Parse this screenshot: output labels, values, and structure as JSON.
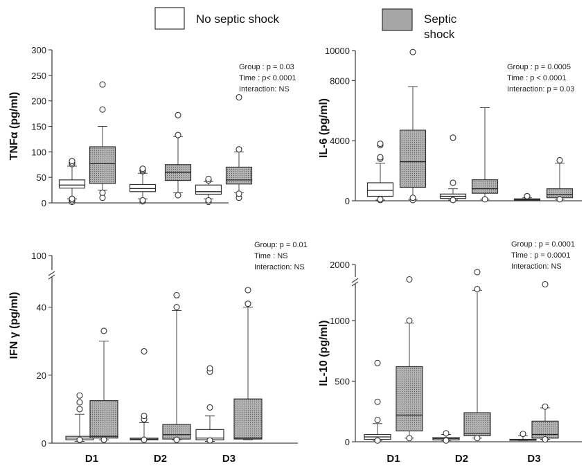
{
  "legend": {
    "items": [
      {
        "label": "No septic shock",
        "fill": "#ffffff"
      },
      {
        "label": "Septic",
        "label2": "shock",
        "fill": "#a6a6a6"
      }
    ]
  },
  "colors": {
    "no_shock": "#ffffff",
    "shock": "#a6a6a6",
    "stroke": "#333333"
  },
  "chart_data": [
    {
      "type": "box",
      "ylabel": "TNFα (pg/ml)",
      "categories": [
        "D1",
        "D2",
        "D3"
      ],
      "ylim": [
        0,
        300
      ],
      "yticks": [
        0,
        50,
        100,
        150,
        200,
        250,
        300
      ],
      "stats": [
        "Group : p = 0.03",
        "Time : p< 0.0001",
        "Interaction: NS"
      ],
      "series": [
        {
          "name": "No septic shock",
          "boxes": [
            {
              "min": 8,
              "q1": 29,
              "median": 35,
              "q3": 45,
              "max": 72,
              "outliers": [
                2,
                5,
                8,
                76,
                79,
                82
              ]
            },
            {
              "min": 8,
              "q1": 22,
              "median": 28,
              "q3": 36,
              "max": 58,
              "outliers": [
                3,
                5,
                62,
                64,
                67
              ]
            },
            {
              "min": 8,
              "q1": 17,
              "median": 22,
              "q3": 35,
              "max": 42,
              "outliers": [
                2,
                5,
                44,
                47
              ]
            }
          ]
        },
        {
          "name": "Septic shock",
          "boxes": [
            {
              "min": 25,
              "q1": 38,
              "median": 77,
              "q3": 110,
              "max": 150,
              "outliers": [
                10,
                20,
                183,
                232
              ]
            },
            {
              "min": 20,
              "q1": 44,
              "median": 60,
              "q3": 75,
              "max": 130,
              "outliers": [
                15,
                133,
                172
              ]
            },
            {
              "min": 20,
              "q1": 37,
              "median": 45,
              "q3": 70,
              "max": 100,
              "outliers": [
                10,
                18,
                105,
                207
              ]
            }
          ]
        }
      ]
    },
    {
      "type": "box",
      "ylabel": "IL-6 (pg/ml)",
      "categories": [
        "D1",
        "D2",
        "D3"
      ],
      "ylim": [
        0,
        10000
      ],
      "yticks": [
        0,
        4000,
        8000,
        10000
      ],
      "stats": [
        "Group : p = 0.0005",
        "Time : p < 0.0001",
        "Interaction: p = 0.03"
      ],
      "series": [
        {
          "name": "No septic shock",
          "boxes": [
            {
              "min": 50,
              "q1": 300,
              "median": 700,
              "q3": 1200,
              "max": 2500,
              "outliers": [
                50,
                100,
                2800,
                2900,
                3700,
                3800
              ]
            },
            {
              "min": 50,
              "q1": 150,
              "median": 300,
              "q3": 450,
              "max": 800,
              "outliers": [
                50,
                1200,
                4200
              ]
            },
            {
              "min": 20,
              "q1": 50,
              "median": 80,
              "q3": 130,
              "max": 200,
              "outliers": [
                280,
                310
              ]
            }
          ]
        },
        {
          "name": "Septic shock",
          "boxes": [
            {
              "min": 100,
              "q1": 900,
              "median": 2600,
              "q3": 4700,
              "max": 7600,
              "outliers": [
                50,
                200,
                9900
              ]
            },
            {
              "min": 100,
              "q1": 500,
              "median": 800,
              "q3": 1400,
              "max": 6200,
              "outliers": [
                100
              ]
            },
            {
              "min": 100,
              "q1": 200,
              "median": 400,
              "q3": 800,
              "max": 2500,
              "outliers": [
                100,
                2700
              ]
            }
          ]
        }
      ]
    },
    {
      "type": "box",
      "ylabel": "IFN γ (pg/ml)",
      "categories": [
        "D1",
        "D2",
        "D3"
      ],
      "ylim": [
        0,
        45
      ],
      "yticks": [
        0,
        20,
        40
      ],
      "break_label": "100",
      "stats": [
        "Group: p = 0.01",
        "Time : NS",
        "Interaction: NS"
      ],
      "series": [
        {
          "name": "No septic shock",
          "boxes": [
            {
              "min": 0.5,
              "q1": 1.0,
              "median": 1.5,
              "q3": 2.0,
              "max": 8.5,
              "outliers": [
                1,
                10,
                12,
                14
              ]
            },
            {
              "min": 1,
              "q1": 1,
              "median": 1.2,
              "q3": 1.5,
              "max": 6,
              "outliers": [
                1,
                7,
                8,
                27
              ]
            },
            {
              "min": 0.5,
              "q1": 1,
              "median": 1.5,
              "q3": 4,
              "max": 8,
              "outliers": [
                0.8,
                10.5,
                21,
                22
              ]
            }
          ]
        },
        {
          "name": "Septic shock",
          "boxes": [
            {
              "min": 1,
              "q1": 1.5,
              "median": 2,
              "q3": 12.5,
              "max": 30,
              "outliers": [
                1,
                33
              ]
            },
            {
              "min": 1,
              "q1": 1.2,
              "median": 2.5,
              "q3": 5.5,
              "max": 39,
              "outliers": [
                1,
                40,
                43.5
              ]
            },
            {
              "min": 1,
              "q1": 1.2,
              "median": 1.5,
              "q3": 13,
              "max": 40,
              "outliers": [
                41,
                47
              ]
            }
          ]
        }
      ]
    },
    {
      "type": "box",
      "ylabel": "IL-10 (pg/ml)",
      "categories": [
        "D1",
        "D2",
        "D3"
      ],
      "ylim": [
        0,
        1400
      ],
      "yticks": [
        0,
        500,
        1000
      ],
      "break_label": "2000",
      "stats": [
        "Group : p = 0.0001",
        "Time : p = 0.0001",
        "Interaction: NS"
      ],
      "series": [
        {
          "name": "No septic shock",
          "boxes": [
            {
              "min": 10,
              "q1": 20,
              "median": 40,
              "q3": 60,
              "max": 150,
              "outliers": [
                10,
                180,
                330,
                650
              ]
            },
            {
              "min": 10,
              "q1": 15,
              "median": 25,
              "q3": 35,
              "max": 60,
              "outliers": [
                10,
                70
              ]
            },
            {
              "min": 10,
              "q1": 12,
              "median": 15,
              "q3": 20,
              "max": 50,
              "outliers": [
                65
              ]
            }
          ]
        },
        {
          "name": "Septic shock",
          "boxes": [
            {
              "min": 30,
              "q1": 90,
              "median": 220,
              "q3": 620,
              "max": 980,
              "outliers": [
                30,
                1000,
                1340
              ]
            },
            {
              "min": 30,
              "q1": 50,
              "median": 70,
              "q3": 240,
              "max": 1250,
              "outliers": [
                30,
                1260,
                1420
              ]
            },
            {
              "min": 20,
              "q1": 30,
              "median": 60,
              "q3": 170,
              "max": 280,
              "outliers": [
                20,
                290,
                1300
              ]
            }
          ]
        }
      ]
    }
  ]
}
